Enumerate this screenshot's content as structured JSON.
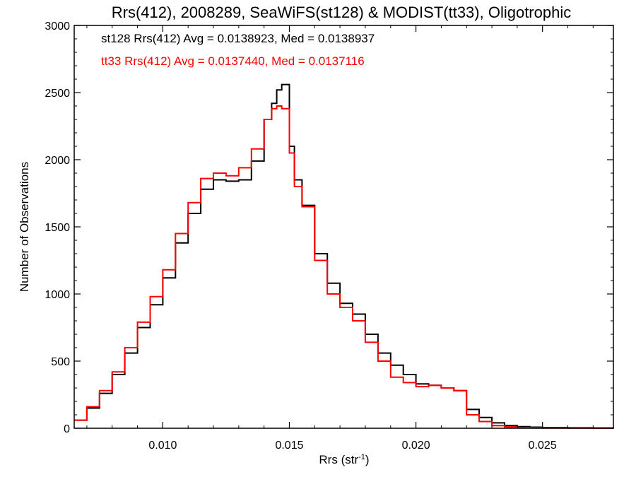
{
  "chart_data": {
    "type": "line",
    "title": "Rrs(412), 2008289, SeaWiFS(st128) & MODIST(tt33), Oligotrophic",
    "xlabel": "Rrs (str",
    "xlabel_sup": "-1",
    "xlabel_close": ")",
    "ylabel": "Number of Observations",
    "xlim": [
      0.0065,
      0.0278
    ],
    "ylim": [
      0,
      3000
    ],
    "xticks": [
      0.01,
      0.015,
      0.02,
      0.025
    ],
    "xtick_labels": [
      "0.010",
      "0.015",
      "0.020",
      "0.025"
    ],
    "yticks": [
      0,
      500,
      1000,
      1500,
      2000,
      2500,
      3000
    ],
    "ytick_labels": [
      "0",
      "500",
      "1000",
      "1500",
      "2000",
      "2500",
      "3000"
    ],
    "grid": false,
    "legend_position": "top-left",
    "series": [
      {
        "legend": "st128 Rrs(412) Avg = 0.0138923, Med = 0.0138937",
        "color": "#000000",
        "style": "step",
        "x": [
          0.0065,
          0.007,
          0.0075,
          0.008,
          0.0085,
          0.009,
          0.0095,
          0.01,
          0.0105,
          0.011,
          0.0115,
          0.012,
          0.0125,
          0.013,
          0.0135,
          0.014,
          0.0143,
          0.0145,
          0.0147,
          0.015,
          0.0152,
          0.0155,
          0.016,
          0.0165,
          0.017,
          0.0175,
          0.018,
          0.0185,
          0.019,
          0.0195,
          0.02,
          0.0205,
          0.021,
          0.0215,
          0.022,
          0.0225,
          0.023,
          0.0235,
          0.024,
          0.0245,
          0.025,
          0.026,
          0.027,
          0.0278
        ],
        "values": [
          60,
          150,
          260,
          400,
          560,
          750,
          920,
          1120,
          1380,
          1600,
          1780,
          1850,
          1840,
          1850,
          1990,
          2300,
          2420,
          2520,
          2560,
          2100,
          1850,
          1660,
          1300,
          1080,
          930,
          850,
          700,
          560,
          470,
          400,
          330,
          320,
          300,
          280,
          140,
          80,
          40,
          20,
          12,
          8,
          5,
          3,
          2,
          0
        ]
      },
      {
        "legend": "tt33 Rrs(412) Avg = 0.0137440, Med = 0.0137116",
        "color": "#ff0000",
        "style": "step",
        "x": [
          0.0065,
          0.007,
          0.0075,
          0.008,
          0.0085,
          0.009,
          0.0095,
          0.01,
          0.0105,
          0.011,
          0.0115,
          0.012,
          0.0125,
          0.013,
          0.0135,
          0.014,
          0.0143,
          0.0145,
          0.0147,
          0.015,
          0.0152,
          0.0155,
          0.016,
          0.0165,
          0.017,
          0.0175,
          0.018,
          0.0185,
          0.019,
          0.0195,
          0.02,
          0.0205,
          0.021,
          0.0215,
          0.022,
          0.0225,
          0.023,
          0.0235,
          0.024,
          0.0245,
          0.025,
          0.026,
          0.027,
          0.0278
        ],
        "values": [
          60,
          160,
          280,
          420,
          600,
          790,
          980,
          1180,
          1450,
          1680,
          1860,
          1900,
          1880,
          1940,
          2080,
          2300,
          2380,
          2400,
          2380,
          2050,
          1800,
          1650,
          1250,
          1000,
          900,
          800,
          640,
          500,
          380,
          340,
          310,
          320,
          300,
          280,
          100,
          50,
          20,
          10,
          5,
          3,
          2,
          1,
          0,
          0
        ]
      }
    ]
  }
}
